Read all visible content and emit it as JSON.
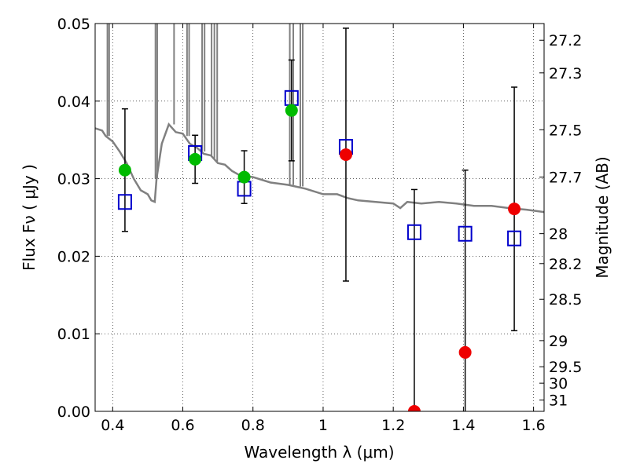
{
  "chart_data": {
    "type": "scatter",
    "xlabel": "Wavelength  λ (μm)",
    "ylabel": "Flux  Fν  ( μJy )",
    "ylabel_right": "Magnitude (AB)",
    "xlim": [
      0.35,
      1.63
    ],
    "ylim": [
      0.0,
      0.05
    ],
    "x_ticks": [
      0.4,
      0.6,
      0.8,
      1.0,
      1.2,
      1.4,
      1.6
    ],
    "x_tick_labels": [
      "0.4",
      "0.6",
      "0.8",
      "1",
      "1.2",
      "1.4",
      "1.6"
    ],
    "y_ticks": [
      0.0,
      0.01,
      0.02,
      0.03,
      0.04,
      0.05
    ],
    "y_tick_labels": [
      "0.00",
      "0.01",
      "0.02",
      "0.03",
      "0.04",
      "0.05"
    ],
    "right_ticks": [
      {
        "label": "27.2",
        "flux": 0.04785
      },
      {
        "label": "27.3",
        "flux": 0.04364
      },
      {
        "label": "27.5",
        "flux": 0.03631
      },
      {
        "label": "27.7",
        "flux": 0.0302
      },
      {
        "label": "28",
        "flux": 0.02291
      },
      {
        "label": "28.2",
        "flux": 0.01905
      },
      {
        "label": "28.5",
        "flux": 0.01445
      },
      {
        "label": "29",
        "flux": 0.00912
      },
      {
        "label": "29.5",
        "flux": 0.00575
      },
      {
        "label": "30",
        "flux": 0.00363
      },
      {
        "label": "31",
        "flux": 0.00145
      }
    ],
    "grid": true,
    "series": [
      {
        "marker": "square",
        "color": "#0000cc",
        "x": [
          0.435,
          0.635,
          0.775,
          0.91,
          1.065,
          1.26,
          1.405,
          1.545
        ],
        "y": [
          0.027,
          0.0333,
          0.0287,
          0.0404,
          0.0341,
          0.0231,
          0.0229,
          0.0223
        ]
      },
      {
        "marker": "circle",
        "color": "#00bb00",
        "x": [
          0.435,
          0.635,
          0.775,
          0.91
        ],
        "y": [
          0.0311,
          0.0325,
          0.0302,
          0.0388
        ]
      },
      {
        "marker": "circle",
        "color": "#ee0000",
        "x": [
          1.065,
          1.26,
          1.405,
          1.545
        ],
        "y": [
          0.0331,
          0.0,
          0.0076,
          0.0261
        ]
      }
    ],
    "error_bars": [
      {
        "x": 0.435,
        "low": 0.0232,
        "high": 0.039
      },
      {
        "x": 0.635,
        "low": 0.0294,
        "high": 0.0356
      },
      {
        "x": 0.775,
        "low": 0.0268,
        "high": 0.0336
      },
      {
        "x": 0.91,
        "low": 0.0323,
        "high": 0.0453
      },
      {
        "x": 1.065,
        "low": 0.0168,
        "high": 0.0494
      },
      {
        "x": 1.26,
        "low": 0.0,
        "high": 0.0286
      },
      {
        "x": 1.405,
        "low": 0.0,
        "high": 0.0311
      },
      {
        "x": 1.545,
        "low": 0.0104,
        "high": 0.0418
      }
    ],
    "model_spectrum": {
      "color": "#808080",
      "x": [
        0.35,
        0.37,
        0.38,
        0.4,
        0.42,
        0.44,
        0.46,
        0.48,
        0.5,
        0.51,
        0.52,
        0.525,
        0.54,
        0.56,
        0.58,
        0.6,
        0.62,
        0.64,
        0.66,
        0.68,
        0.7,
        0.72,
        0.74,
        0.76,
        0.8,
        0.85,
        0.9,
        0.95,
        1.0,
        1.04,
        1.07,
        1.1,
        1.15,
        1.2,
        1.22,
        1.24,
        1.28,
        1.33,
        1.38,
        1.43,
        1.48,
        1.53,
        1.58,
        1.63
      ],
      "y": [
        0.0365,
        0.0362,
        0.0355,
        0.0348,
        0.0335,
        0.032,
        0.03,
        0.0285,
        0.028,
        0.0272,
        0.027,
        0.03,
        0.0345,
        0.037,
        0.036,
        0.0358,
        0.0345,
        0.034,
        0.0332,
        0.033,
        0.032,
        0.0318,
        0.031,
        0.0305,
        0.0302,
        0.0295,
        0.0292,
        0.0287,
        0.028,
        0.028,
        0.0275,
        0.0272,
        0.027,
        0.0268,
        0.0262,
        0.027,
        0.0268,
        0.027,
        0.0268,
        0.0265,
        0.0265,
        0.0262,
        0.026,
        0.0257
      ]
    },
    "absorption_lines": [
      {
        "x": 0.385,
        "y_min": 0.0355
      },
      {
        "x": 0.39,
        "y_min": 0.0355
      },
      {
        "x": 0.522,
        "y_min": 0.03
      },
      {
        "x": 0.527,
        "y_min": 0.03
      },
      {
        "x": 0.575,
        "y_min": 0.037
      },
      {
        "x": 0.612,
        "y_min": 0.0355
      },
      {
        "x": 0.618,
        "y_min": 0.0355
      },
      {
        "x": 0.655,
        "y_min": 0.0335
      },
      {
        "x": 0.662,
        "y_min": 0.0335
      },
      {
        "x": 0.682,
        "y_min": 0.033
      },
      {
        "x": 0.69,
        "y_min": 0.0325
      },
      {
        "x": 0.698,
        "y_min": 0.0322
      },
      {
        "x": 0.905,
        "y_min": 0.0292
      },
      {
        "x": 0.915,
        "y_min": 0.0292
      },
      {
        "x": 0.935,
        "y_min": 0.029
      },
      {
        "x": 0.942,
        "y_min": 0.029
      }
    ]
  }
}
